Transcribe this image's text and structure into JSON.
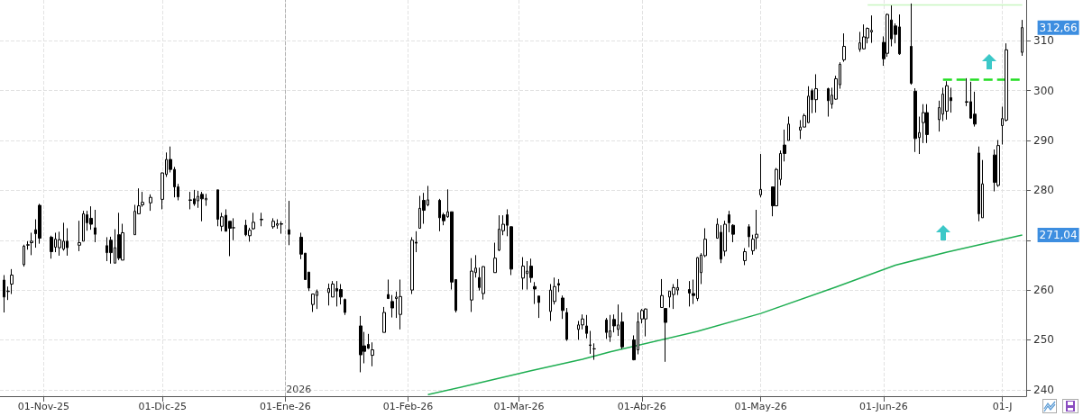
{
  "chart_data": {
    "type": "candlestick",
    "x": [
      "2025-10-22",
      "2025-10-23",
      "2025-10-24",
      "2025-10-27",
      "2025-10-28",
      "2025-10-29",
      "2025-10-30",
      "2025-10-31",
      "2025-11-03",
      "2025-11-04",
      "2025-11-05",
      "2025-11-06",
      "2025-11-07",
      "2025-11-10",
      "2025-11-11",
      "2025-11-12",
      "2025-11-13",
      "2025-11-14",
      "2025-11-17",
      "2025-11-18",
      "2025-11-19",
      "2025-11-20",
      "2025-11-21",
      "2025-11-24",
      "2025-11-25",
      "2025-11-26",
      "2025-11-28",
      "2025-12-01",
      "2025-12-02",
      "2025-12-03",
      "2025-12-04",
      "2025-12-05",
      "2025-12-08",
      "2025-12-09",
      "2025-12-10",
      "2025-12-11",
      "2025-12-12",
      "2025-12-15",
      "2025-12-16",
      "2025-12-17",
      "2025-12-18",
      "2025-12-19",
      "2025-12-22",
      "2025-12-23",
      "2025-12-24",
      "2025-12-26",
      "2025-12-29",
      "2025-12-30",
      "2025-12-31",
      "2026-01-02",
      "2026-01-05",
      "2026-01-06",
      "2026-01-07",
      "2026-01-08",
      "2026-01-09",
      "2026-01-12",
      "2026-01-13",
      "2026-01-14",
      "2026-01-15",
      "2026-01-16",
      "2026-01-20",
      "2026-01-21",
      "2026-01-22",
      "2026-01-23",
      "2026-01-26",
      "2026-01-27",
      "2026-01-28",
      "2026-01-29",
      "2026-01-30",
      "2026-02-02",
      "2026-02-03",
      "2026-02-04",
      "2026-02-05",
      "2026-02-06",
      "2026-02-09",
      "2026-02-10",
      "2026-02-11",
      "2026-02-12",
      "2026-02-13",
      "2026-02-17",
      "2026-02-18",
      "2026-02-19",
      "2026-02-20",
      "2026-02-23",
      "2026-02-24",
      "2026-02-25",
      "2026-02-26",
      "2026-02-27",
      "2026-03-02",
      "2026-03-03",
      "2026-03-04",
      "2026-03-05",
      "2026-03-06",
      "2026-03-09",
      "2026-03-10",
      "2026-03-11",
      "2026-03-12",
      "2026-03-13",
      "2026-03-16",
      "2026-03-17",
      "2026-03-18",
      "2026-03-19",
      "2026-03-20",
      "2026-03-23",
      "2026-03-24",
      "2026-03-25",
      "2026-03-26",
      "2026-03-27",
      "2026-03-30",
      "2026-03-31",
      "2026-04-01",
      "2026-04-02",
      "2026-04-06",
      "2026-04-07",
      "2026-04-08",
      "2026-04-09",
      "2026-04-10",
      "2026-04-13",
      "2026-04-14",
      "2026-04-15",
      "2026-04-16",
      "2026-04-17",
      "2026-04-20",
      "2026-04-21",
      "2026-04-22",
      "2026-04-23",
      "2026-04-24",
      "2026-04-27",
      "2026-04-28",
      "2026-04-29",
      "2026-04-30",
      "2026-05-01",
      "2026-05-04",
      "2026-05-05",
      "2026-05-06",
      "2026-05-07",
      "2026-05-08",
      "2026-05-11",
      "2026-05-12",
      "2026-05-13",
      "2026-05-14",
      "2026-05-15",
      "2026-05-18",
      "2026-05-19",
      "2026-05-20",
      "2026-05-21",
      "2026-05-22",
      "2026-05-26",
      "2026-05-27",
      "2026-05-28",
      "2026-05-29",
      "2026-06-01",
      "2026-06-02",
      "2026-06-03",
      "2026-06-04",
      "2026-06-05",
      "2026-06-08",
      "2026-06-09",
      "2026-06-10",
      "2026-06-11",
      "2026-06-12",
      "2026-06-15",
      "2026-06-16",
      "2026-06-17",
      "2026-06-18",
      "2026-06-22",
      "2026-06-23",
      "2026-06-24",
      "2026-06-25",
      "2026-06-26",
      "2026-06-29",
      "2026-06-30",
      "2026-07-01",
      "2026-07-02",
      "2026-07-06"
    ],
    "ohlc": [
      [
        262,
        263,
        255.5,
        258.6
      ],
      [
        259.7,
        260.7,
        258,
        259.8
      ],
      [
        261.2,
        264.2,
        259.2,
        263
      ],
      [
        265.1,
        269.1,
        264.7,
        268.8
      ],
      [
        269,
        269.8,
        268.1,
        269.1
      ],
      [
        269.5,
        271.5,
        267,
        269.8
      ],
      [
        272.1,
        274.2,
        268.5,
        271.3
      ],
      [
        277,
        277.3,
        269.3,
        270.4
      ],
      [
        270.6,
        270.9,
        266.3,
        267.7
      ],
      [
        268.6,
        271.5,
        267.6,
        270.2
      ],
      [
        268.5,
        271.7,
        266.9,
        270.1
      ],
      [
        268.2,
        273.5,
        267.9,
        269.8
      ],
      [
        269.8,
        272.4,
        266.9,
        268.5
      ],
      [
        269,
        273.9,
        267.8,
        269.5
      ],
      [
        269.8,
        275.9,
        269.8,
        275.3
      ],
      [
        275.1,
        275.9,
        271.9,
        273.5
      ],
      [
        274.4,
        276.8,
        272.1,
        273.2
      ],
      [
        272.5,
        276.1,
        269.6,
        271.2
      ],
      [
        268.9,
        270.6,
        265.8,
        267.5
      ],
      [
        270,
        270.7,
        265.3,
        267.5
      ],
      [
        265.4,
        272.2,
        265.4,
        268.5
      ],
      [
        271.1,
        275.5,
        266,
        266.4
      ],
      [
        266,
        273.3,
        266,
        271.5
      ],
      [
        271.1,
        277.1,
        271.1,
        275.8
      ],
      [
        275.3,
        280.4,
        275.3,
        276.9
      ],
      [
        277.1,
        279.7,
        276.7,
        277.6
      ],
      [
        277.5,
        279.2,
        275.9,
        278.6
      ],
      [
        278.2,
        283.6,
        276.2,
        283.5
      ],
      [
        283.2,
        287.6,
        282.7,
        286.2
      ],
      [
        286.2,
        288.8,
        283.6,
        284.2
      ],
      [
        284.2,
        284.7,
        278.6,
        280.7
      ],
      [
        280.7,
        281.3,
        278,
        278.7
      ],
      [
        278.1,
        279.7,
        276.2,
        278
      ],
      [
        278.3,
        280.1,
        276.9,
        277.3
      ],
      [
        277.9,
        279.9,
        276.5,
        278.8
      ],
      [
        279.2,
        279.7,
        273.8,
        278.3
      ],
      [
        278.1,
        279.3,
        276.9,
        278.4
      ],
      [
        280.1,
        280.1,
        272.8,
        274.2
      ],
      [
        272.8,
        275.5,
        271.8,
        274.7
      ],
      [
        275,
        276.2,
        271.8,
        271.8
      ],
      [
        273.8,
        273.8,
        266.8,
        272.4
      ],
      [
        272.5,
        274.4,
        270,
        272.5
      ],
      [
        273,
        274.1,
        270.8,
        271.1
      ],
      [
        270.9,
        272.5,
        269.7,
        272
      ],
      [
        272.3,
        275.5,
        272.1,
        273.6
      ],
      [
        274.1,
        275.5,
        272.8,
        274.2
      ],
      [
        272.7,
        274.4,
        272.3,
        273.8
      ],
      [
        273,
        274.2,
        272.3,
        273.3
      ],
      [
        273.3,
        273.8,
        271.3,
        273.2
      ],
      [
        272.1,
        277.9,
        269,
        271.2
      ],
      [
        270.6,
        271.5,
        266.2,
        267.2
      ],
      [
        267.4,
        267.4,
        262.1,
        262.1
      ],
      [
        263.6,
        263.6,
        259.8,
        260.4
      ],
      [
        257.1,
        259.3,
        255.6,
        259.2
      ],
      [
        258.9,
        260.1,
        256.2,
        259.7
      ],
      [
        259.5,
        261.3,
        256.9,
        260.3
      ],
      [
        258.6,
        261.8,
        258.6,
        261.2
      ],
      [
        260.3,
        261.8,
        256.7,
        259.8
      ],
      [
        260.1,
        261.2,
        257.1,
        258.6
      ],
      [
        258.1,
        258.3,
        255,
        255.5
      ],
      [
        252.8,
        254.8,
        243.5,
        247
      ],
      [
        248.8,
        251.6,
        245.3,
        247.7
      ],
      [
        249.1,
        251.2,
        248.2,
        248.3
      ],
      [
        246.9,
        249.5,
        244.7,
        248
      ],
      [
        251.5,
        256.6,
        251.5,
        255.5
      ],
      [
        259.1,
        262.1,
        258.2,
        258.3
      ],
      [
        257.7,
        259,
        254.5,
        256.4
      ],
      [
        258.3,
        259.7,
        254.4,
        258.6
      ],
      [
        255.1,
        262.1,
        252.1,
        258.7
      ],
      [
        260,
        270.6,
        259.2,
        270
      ],
      [
        269.6,
        271.8,
        267.6,
        269.4
      ],
      [
        272.4,
        278.9,
        272.4,
        276.4
      ],
      [
        278,
        279.5,
        273.3,
        276
      ],
      [
        277.1,
        280.9,
        276.8,
        278.1
      ],
      [
        278,
        278.3,
        271.8,
        274.5
      ],
      [
        275.1,
        275.5,
        273,
        273.9
      ],
      [
        274.7,
        280.2,
        274.5,
        275.7
      ],
      [
        275.7,
        275.7,
        260.1,
        261.6
      ],
      [
        262.1,
        262.1,
        255.5,
        255.9
      ],
      [
        258,
        266.4,
        255.6,
        263.8
      ],
      [
        263.5,
        267,
        262.5,
        264.4
      ],
      [
        262.5,
        264.5,
        259.9,
        260.5
      ],
      [
        259.3,
        264.8,
        258.1,
        264.7
      ],
      [
        263.5,
        269.5,
        263.5,
        266.4
      ],
      [
        268,
        275,
        267.8,
        272.2
      ],
      [
        271.9,
        275,
        271,
        273.2
      ],
      [
        275.1,
        276.2,
        270.8,
        273
      ],
      [
        272.7,
        272.8,
        263,
        264.2
      ],
      [
        262.4,
        266.6,
        260.1,
        264.8
      ],
      [
        263.3,
        265.8,
        260.1,
        263.8
      ],
      [
        264.8,
        266.3,
        261.5,
        262.5
      ],
      [
        260.7,
        261.6,
        257.2,
        260.2
      ],
      [
        258.8,
        258.8,
        254.4,
        257.5
      ],
      [
        255.7,
        261.2,
        253.8,
        260
      ],
      [
        257.7,
        262.5,
        257.1,
        260.7
      ],
      [
        261.3,
        262.2,
        259.6,
        261
      ],
      [
        258.4,
        258.9,
        254.2,
        255.9
      ],
      [
        255.5,
        256.4,
        249.8,
        250.1
      ],
      [
        252.1,
        253.8,
        250,
        253
      ],
      [
        253,
        255.1,
        252.1,
        254.2
      ],
      [
        252.8,
        255,
        250.3,
        251.3
      ],
      [
        249,
        251.8,
        247.2,
        248.9
      ],
      [
        248.2,
        249.3,
        246,
        248.2
      ],
      [
        254,
        254.4,
        250.2,
        251.5
      ],
      [
        250.6,
        255,
        249.6,
        251.8
      ],
      [
        254.1,
        255.1,
        251.5,
        252.8
      ],
      [
        252.1,
        257.1,
        250.8,
        253
      ],
      [
        253.6,
        255.5,
        248.2,
        248.6
      ],
      [
        250,
        250.9,
        245.9,
        246
      ],
      [
        248,
        255.5,
        247.1,
        253.6
      ],
      [
        254.2,
        256.2,
        253.3,
        255.9
      ],
      [
        254.2,
        256.3,
        250.7,
        256.2
      ],
      [
        256.5,
        262.2,
        256.5,
        258.9
      ],
      [
        256.3,
        256.3,
        245.6,
        253.5
      ],
      [
        258.6,
        259.8,
        256.5,
        259.8
      ],
      [
        259.1,
        261.2,
        256.2,
        260.5
      ],
      [
        260,
        262.2,
        259,
        260.5
      ],
      [
        260.1,
        261.8,
        256.7,
        259.4
      ],
      [
        259.3,
        262.1,
        257.2,
        258.9
      ],
      [
        258.3,
        266.6,
        257.8,
        266.5
      ],
      [
        263.5,
        267.4,
        261.2,
        267
      ],
      [
        266.9,
        272.4,
        266.6,
        270.2
      ],
      [
        270.4,
        274.4,
        270.3,
        273.2
      ],
      [
        271.6,
        273,
        265.4,
        266.2
      ],
      [
        267.8,
        273.9,
        266.8,
        273.2
      ],
      [
        275.1,
        275.9,
        271.6,
        273.5
      ],
      [
        273,
        273.2,
        269.6,
        271.2
      ],
      [
        265.9,
        268.4,
        265,
        267.7
      ],
      [
        272.7,
        273.2,
        268.6,
        270.7
      ],
      [
        267.9,
        271.1,
        267.1,
        270.2
      ],
      [
        270.5,
        276.1,
        268.2,
        271.2
      ],
      [
        279.1,
        287.3,
        278.6,
        280.2
      ],
      [
        280.7,
        280.7,
        274.8,
        276.9
      ],
      [
        276.9,
        284.5,
        276.8,
        284.2
      ],
      [
        282.2,
        288,
        281,
        287.4
      ],
      [
        289.1,
        292.2,
        285.8,
        287.4
      ],
      [
        290,
        294.8,
        290,
        293.3
      ],
      [
        292.1,
        294.1,
        290.3,
        292.7
      ],
      [
        292.7,
        295.4,
        292.7,
        295
      ],
      [
        293.6,
        300.9,
        293.5,
        298.9
      ],
      [
        300,
        300.4,
        295.5,
        298.2
      ],
      [
        298.2,
        303.3,
        295.6,
        300.4
      ],
      [
        300.4,
        300.6,
        294.8,
        298
      ],
      [
        297.3,
        300.6,
        296.4,
        299.1
      ],
      [
        298.3,
        303,
        298.2,
        302.4
      ],
      [
        301.2,
        305.7,
        300.4,
        305.3
      ],
      [
        306.2,
        311.5,
        305.8,
        308.9
      ],
      [
        308.3,
        311.8,
        307.8,
        309.6
      ],
      [
        308.4,
        313.3,
        308.3,
        310.8
      ],
      [
        310.6,
        312.7,
        309.5,
        312.5
      ],
      [
        311.8,
        315.1,
        309.6,
        312.1
      ],
      [
        309.7,
        310.9,
        305,
        306.4
      ],
      [
        307.5,
        315.5,
        306.8,
        315.3
      ],
      [
        314.2,
        317.1,
        308.9,
        310.4
      ],
      [
        313,
        313.5,
        309.5,
        311.3
      ],
      [
        312.8,
        315.3,
        307.2,
        307.4
      ],
      [
        308.9,
        317.5,
        301.2,
        301.5
      ],
      [
        299.9,
        300.5,
        287.7,
        290.4
      ],
      [
        290.6,
        294.8,
        287.3,
        291.6
      ],
      [
        293.6,
        297.3,
        289.5,
        295.6
      ],
      [
        295.6,
        297.3,
        289.5,
        291.2
      ],
      [
        294.2,
        298,
        291.8,
        296.6
      ],
      [
        295.3,
        300.6,
        293.9,
        299.3
      ],
      [
        295.9,
        301.9,
        294.2,
        301
      ],
      [
        298.6,
        300.6,
        295.6,
        298
      ],
      [
        297.8,
        302.5,
        296.9,
        297.7
      ],
      [
        297.8,
        301.8,
        294.4,
        294.5
      ],
      [
        295.3,
        299.8,
        292.8,
        293.3
      ],
      [
        287.5,
        288.8,
        273.8,
        275.3
      ],
      [
        274.5,
        286.1,
        274.5,
        281.3
      ],
      [
        287.1,
        288.2,
        279.8,
        281.6
      ],
      [
        281,
        290.1,
        280.7,
        289
      ],
      [
        293,
        296.8,
        289.2,
        294.4
      ],
      [
        294.1,
        309.5,
        293.8,
        308.2
      ],
      [
        307.7,
        314.2,
        307,
        312.66
      ]
    ],
    "series": [
      {
        "type": "line",
        "color": "#1fae52",
        "x": [
          "2026-02-06",
          "2026-02-17",
          "2026-03-04",
          "2026-03-17",
          "2026-03-24",
          "2026-04-15",
          "2026-05-01",
          "2026-05-20",
          "2026-06-04",
          "2026-06-17",
          "2026-07-06"
        ],
        "values": [
          239.0,
          241.0,
          243.8,
          246.1,
          247.6,
          251.7,
          255.3,
          260.6,
          265.0,
          267.6,
          271.04
        ]
      },
      {
        "type": "line",
        "color": "#c8f5c0",
        "x": [
          "2026-05-28",
          "2026-07-06"
        ],
        "values": [
          317.2,
          317.2
        ]
      },
      {
        "type": "line",
        "color": "#22dd22",
        "line_style": "dashed",
        "x": [
          "2026-06-16",
          "2026-07-06"
        ],
        "values": [
          302.2,
          302.2
        ]
      }
    ],
    "ylim": [
      238.7,
      318.2
    ],
    "yticks": [
      240,
      250,
      260,
      {
        "value": 270,
        "label": null
      },
      280,
      290,
      300,
      310
    ],
    "xlim": [
      "2025-10-21",
      "2026-07-07"
    ],
    "xticks": [
      {
        "value": "2025-11-01",
        "label": "01-Nov-25"
      },
      {
        "value": "2025-12-01",
        "label": "01-Dic-25"
      },
      {
        "value": "2026-01-01",
        "label": "01-Ene-26"
      },
      {
        "value": "2026-02-01",
        "label": "01-Feb-26"
      },
      {
        "value": "2026-03-01",
        "label": "01-Mar-26"
      },
      {
        "value": "2026-04-01",
        "label": "01-Abr-26"
      },
      {
        "value": "2026-05-01",
        "label": "01-May-26"
      },
      {
        "value": "2026-06-01",
        "label": "01-Jun-26"
      },
      {
        "value": "2026-07-01",
        "label": "01-J"
      }
    ],
    "grid": true,
    "ref_lines": [
      {
        "axis": "x",
        "value": "2026-01-01",
        "label": "2026",
        "color": "#b0b0b0",
        "line_style": "dashed"
      }
    ],
    "annotations": [
      {
        "text": "312,66",
        "x": "2026-07-06",
        "y": 312.66
      },
      {
        "text": "271,04",
        "x": "2026-07-06",
        "y": 271.04
      }
    ]
  }
}
